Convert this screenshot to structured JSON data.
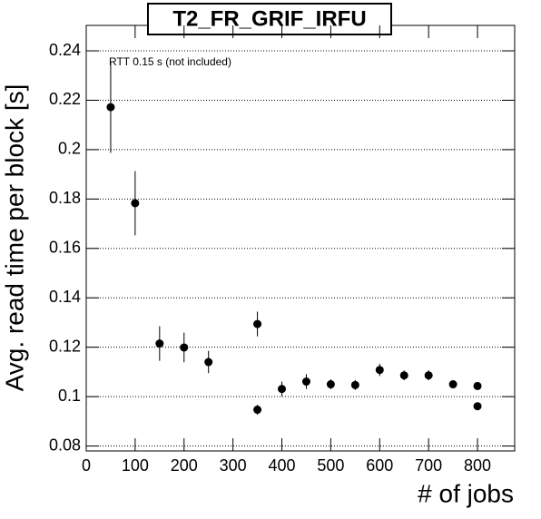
{
  "chart_data": {
    "type": "scatter",
    "title": "T2_FR_GRIF_IRFU",
    "annotation": "RTT 0.15 s (not included)",
    "xlabel": "# of jobs",
    "ylabel": "Avg. read time per block [s]",
    "x": [
      50,
      100,
      150,
      200,
      250,
      350,
      350,
      400,
      450,
      500,
      550,
      600,
      650,
      700,
      750,
      800,
      800
    ],
    "values": [
      0.2172,
      0.1783,
      0.1215,
      0.1199,
      0.114,
      0.1294,
      0.0947,
      0.1031,
      0.1061,
      0.105,
      0.1047,
      0.1108,
      0.1086,
      0.1086,
      0.105,
      0.1043,
      0.0961
    ],
    "errors": [
      0.0185,
      0.013,
      0.007,
      0.006,
      0.0045,
      0.005,
      0.002,
      0.003,
      0.003,
      0.002,
      0.002,
      0.0025,
      0.002,
      0.002,
      0.0015,
      0.0015,
      0.0015
    ],
    "color": "#000000",
    "xlim": [
      0,
      876
    ],
    "ylim": [
      0.078,
      0.2503
    ],
    "xticks": [
      0,
      100,
      200,
      300,
      400,
      500,
      600,
      700,
      800
    ],
    "yticks": [
      0.08,
      0.1,
      0.12,
      0.14,
      0.16,
      0.18,
      0.2,
      0.22,
      0.24
    ],
    "grid": "y"
  }
}
